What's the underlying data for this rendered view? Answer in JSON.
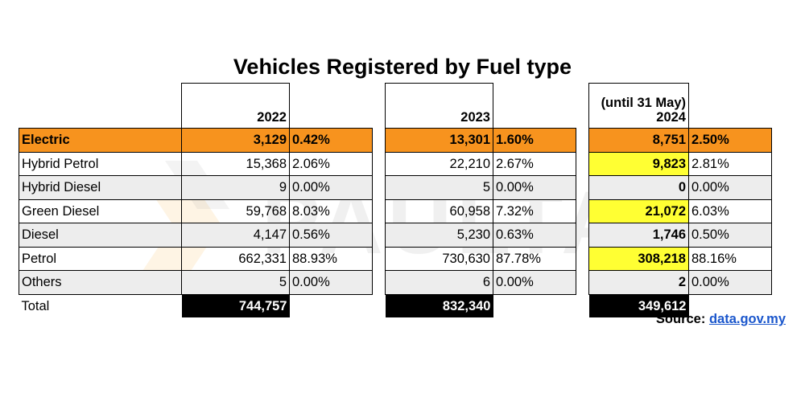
{
  "title": "Vehicles Registered by Fuel type",
  "header": {
    "y2022": "2022",
    "y2023": "2023",
    "y2024_note": "(until 31 May)",
    "y2024": "2024"
  },
  "rows": [
    {
      "label": "Electric",
      "v2022": "3,129",
      "p2022": "0.42%",
      "v2023": "13,301",
      "p2023": "1.60%",
      "v2024": "8,751",
      "p2024": "2.50%"
    },
    {
      "label": "Hybrid Petrol",
      "v2022": "15,368",
      "p2022": "2.06%",
      "v2023": "22,210",
      "p2023": "2.67%",
      "v2024": "9,823",
      "p2024": "2.81%"
    },
    {
      "label": "Hybrid Diesel",
      "v2022": "9",
      "p2022": "0.00%",
      "v2023": "5",
      "p2023": "0.00%",
      "v2024": "0",
      "p2024": "0.00%"
    },
    {
      "label": "Green Diesel",
      "v2022": "59,768",
      "p2022": "8.03%",
      "v2023": "60,958",
      "p2023": "7.32%",
      "v2024": "21,072",
      "p2024": "6.03%"
    },
    {
      "label": "Diesel",
      "v2022": "4,147",
      "p2022": "0.56%",
      "v2023": "5,230",
      "p2023": "0.63%",
      "v2024": "1,746",
      "p2024": "0.50%"
    },
    {
      "label": "Petrol",
      "v2022": "662,331",
      "p2022": "88.93%",
      "v2023": "730,630",
      "p2023": "87.78%",
      "v2024": "308,218",
      "p2024": "88.16%"
    },
    {
      "label": "Others",
      "v2022": "5",
      "p2022": "0.00%",
      "v2023": "6",
      "p2023": "0.00%",
      "v2024": "2",
      "p2024": "0.00%"
    }
  ],
  "total": {
    "label": "Total",
    "v2022": "744,757",
    "v2023": "832,340",
    "v2024": "349,612"
  },
  "source": {
    "label": "Source:",
    "link": "data.gov.my"
  },
  "colors": {
    "electric_row": "#f7931e",
    "col2024": "#fdd07b",
    "highlight": "#ffff33",
    "total_box": "#000000",
    "alt_row": "#ededed"
  },
  "chart_data": {
    "type": "table",
    "title": "Vehicles Registered by Fuel type",
    "columns": [
      "2022",
      "2023",
      "(until 31 May) 2024"
    ],
    "categories": [
      "Electric",
      "Hybrid Petrol",
      "Hybrid Diesel",
      "Green Diesel",
      "Diesel",
      "Petrol",
      "Others"
    ],
    "series": [
      {
        "name": "2022",
        "values": [
          3129,
          15368,
          9,
          59768,
          4147,
          662331,
          5
        ],
        "percent": [
          0.42,
          2.06,
          0.0,
          8.03,
          0.56,
          88.93,
          0.0
        ],
        "total": 744757
      },
      {
        "name": "2023",
        "values": [
          13301,
          22210,
          5,
          60958,
          5230,
          730630,
          6
        ],
        "percent": [
          1.6,
          2.67,
          0.0,
          7.32,
          0.63,
          87.78,
          0.0
        ],
        "total": 832340
      },
      {
        "name": "2024",
        "values": [
          8751,
          9823,
          0,
          21072,
          1746,
          308218,
          2
        ],
        "percent": [
          2.5,
          2.81,
          0.0,
          6.03,
          0.5,
          88.16,
          0.0
        ],
        "total": 349612
      }
    ]
  }
}
